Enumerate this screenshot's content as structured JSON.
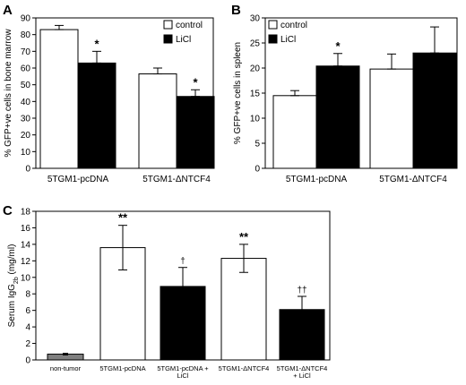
{
  "chart_data": [
    {
      "panel": "A",
      "type": "bar",
      "ylabel": "% GFP+ve cells in bone marrow",
      "ylim": [
        0,
        90
      ],
      "yticks": [
        0,
        10,
        20,
        30,
        40,
        50,
        60,
        70,
        80,
        90
      ],
      "categories": [
        "5TGM1-pcDNA",
        "5TGM1-ΔNTCF4"
      ],
      "series": [
        {
          "name": "control",
          "color": "#ffffff",
          "values": [
            83,
            56.5
          ],
          "errors": [
            2.5,
            3.5
          ]
        },
        {
          "name": "LiCl",
          "color": "#000000",
          "values": [
            63,
            43
          ],
          "errors": [
            7,
            4
          ]
        }
      ],
      "significance": [
        [
          "",
          "*"
        ],
        [
          "",
          "*"
        ]
      ],
      "legend": "top-right"
    },
    {
      "panel": "B",
      "type": "bar",
      "ylabel": "% GFP+ve cells in spleen",
      "ylim": [
        0,
        30
      ],
      "yticks": [
        0,
        5,
        10,
        15,
        20,
        25,
        30
      ],
      "categories": [
        "5TGM1-pcDNA",
        "5TGM1-ΔNTCF4"
      ],
      "series": [
        {
          "name": "control",
          "color": "#ffffff",
          "values": [
            14.5,
            19.8
          ],
          "errors": [
            1,
            3
          ]
        },
        {
          "name": "LiCl",
          "color": "#000000",
          "values": [
            20.4,
            23
          ],
          "errors": [
            2.5,
            5.2
          ]
        }
      ],
      "significance": [
        [
          "",
          "*"
        ],
        [
          "",
          ""
        ]
      ],
      "legend": "top-left"
    },
    {
      "panel": "C",
      "type": "bar",
      "ylabel_main": "Serum IgG",
      "ylabel_sub": "2b",
      "ylabel_tail": " (mg/ml)",
      "ylim": [
        0,
        18
      ],
      "yticks": [
        0,
        2,
        4,
        6,
        8,
        10,
        12,
        14,
        16,
        18
      ],
      "categories": [
        [
          "non-tumor"
        ],
        [
          "5TGM1-pcDNA"
        ],
        [
          "5TGM1-pcDNA +",
          "LiCl"
        ],
        [
          "5TGM1-ΔNTCF4"
        ],
        [
          "5TGM1-ΔNTCF4",
          "+ LiCl"
        ]
      ],
      "values": [
        0.7,
        13.6,
        8.9,
        12.3,
        6.1
      ],
      "errors": [
        0.1,
        2.7,
        2.3,
        1.7,
        1.6
      ],
      "colors": [
        "#808080",
        "#ffffff",
        "#000000",
        "#ffffff",
        "#000000"
      ],
      "significance": [
        "",
        "**",
        "†",
        "**",
        "††"
      ]
    }
  ]
}
